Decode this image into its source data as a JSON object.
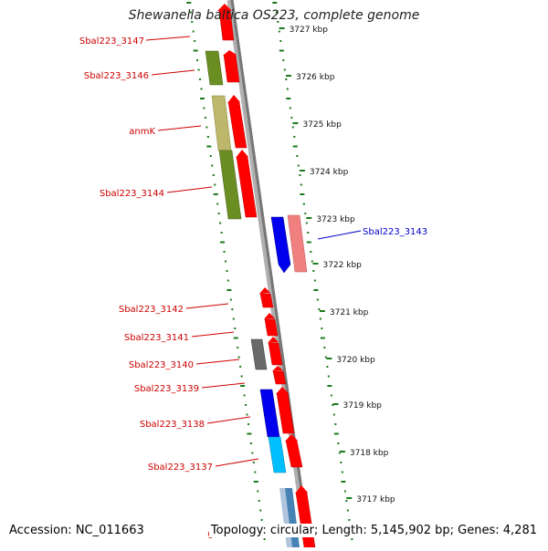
{
  "title": "Shewanella baltica OS223, complete genome",
  "accession": "Accession: NC_011663",
  "topology": "Topology: circular; Length: 5,145,902 bp; Genes: 4,281",
  "colors": {
    "axis": "#888888",
    "tick": "#1b7a1b",
    "gene_arrow": "#ff0000",
    "label_red": "#cc0000",
    "label_blue": "#0000cc",
    "olive": "#6b8e23",
    "khaki": "#bdb76b",
    "blue": "#0000ee",
    "pink": "#f08080",
    "gray": "#696969",
    "cyan": "#00bfff",
    "light_blue": "#4682b4"
  },
  "scale_labels": [
    "3727 kbp",
    "3726 kbp",
    "3725 kbp",
    "3724 kbp",
    "3723 kbp",
    "3722 kbp",
    "3721 kbp",
    "3720 kbp",
    "3719 kbp",
    "3718 kbp",
    "3717 kbp"
  ],
  "gene_labels": [
    {
      "text": "Sbal223_3147",
      "color": "red"
    },
    {
      "text": "Sbal223_3146",
      "color": "red"
    },
    {
      "text": "anmK",
      "color": "red"
    },
    {
      "text": "Sbal223_3144",
      "color": "red"
    },
    {
      "text": "Sbal223_3143",
      "color": "blue"
    },
    {
      "text": "Sbal223_3142",
      "color": "red"
    },
    {
      "text": "Sbal223_3141",
      "color": "red"
    },
    {
      "text": "Sbal223_3140",
      "color": "red"
    },
    {
      "text": "Sbal223_3139",
      "color": "red"
    },
    {
      "text": "Sbal223_3138",
      "color": "red"
    },
    {
      "text": "Sbal223_3137",
      "color": "red"
    },
    {
      "text": "gltD",
      "color": "red"
    }
  ]
}
